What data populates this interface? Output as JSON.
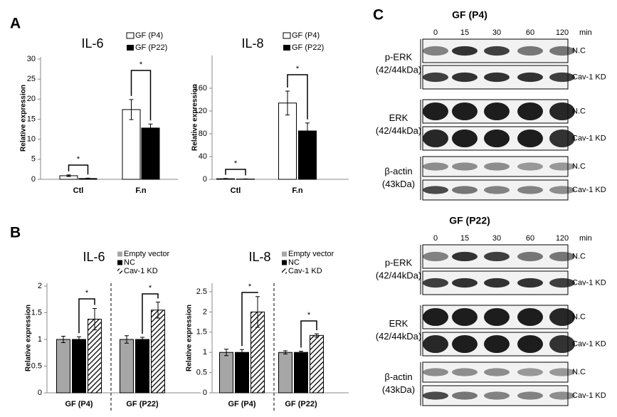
{
  "panel_labels": [
    "A",
    "B",
    "C"
  ],
  "chart_data": [
    {
      "type": "bar",
      "title": "IL-6",
      "ylabel": "Relative expression",
      "categories": [
        "Ctl",
        "F.n"
      ],
      "series": [
        {
          "name": "GF (P4)",
          "color": "#ffffff",
          "values": [
            0.9,
            17.4
          ],
          "errors": [
            0.2,
            2.5
          ]
        },
        {
          "name": "GF (P22)",
          "color": "#000000",
          "values": [
            0.2,
            12.8
          ],
          "errors": [
            0.1,
            1.0
          ]
        }
      ],
      "ylim": [
        0,
        30
      ],
      "yticks": [
        0,
        5,
        10,
        15,
        20,
        25,
        30
      ],
      "annotations": [
        "*",
        "*"
      ]
    },
    {
      "type": "bar",
      "title": "IL-8",
      "ylabel": "Relative expression",
      "categories": [
        "Ctl",
        "F.n"
      ],
      "series": [
        {
          "name": "GF (P4)",
          "color": "#ffffff",
          "values": [
            1,
            134
          ],
          "errors": [
            0.5,
            21
          ]
        },
        {
          "name": "GF (P22)",
          "color": "#000000",
          "values": [
            0.5,
            85
          ],
          "errors": [
            0.3,
            14
          ]
        }
      ],
      "ylim": [
        0,
        180
      ],
      "yticks": [
        0,
        40,
        80,
        120,
        160
      ],
      "annotations": [
        "*",
        "*"
      ]
    },
    {
      "type": "bar",
      "title": "IL-6",
      "ylabel": "Relative expression",
      "categories": [
        "GF (P4)",
        "GF (P22)"
      ],
      "series": [
        {
          "name": "Empty vector",
          "color": "#a6a6a6",
          "values": [
            1.0,
            1.0
          ],
          "errors": [
            0.06,
            0.07
          ]
        },
        {
          "name": "NC",
          "color": "#000000",
          "values": [
            1.0,
            1.0
          ],
          "errors": [
            0.05,
            0.04
          ]
        },
        {
          "name": "Cav-1 KD",
          "color": "#000000",
          "hatch": true,
          "values": [
            1.38,
            1.55
          ],
          "errors": [
            0.2,
            0.15
          ]
        }
      ],
      "ylim": [
        0,
        2
      ],
      "yticks": [
        0,
        0.5,
        1,
        1.5,
        2
      ],
      "annotations": [
        "*",
        "*"
      ]
    },
    {
      "type": "bar",
      "title": "IL-8",
      "ylabel": "Relative expression",
      "categories": [
        "GF (P4)",
        "GF (P22)"
      ],
      "series": [
        {
          "name": "Empty vector",
          "color": "#a6a6a6",
          "values": [
            1.0,
            1.0
          ],
          "errors": [
            0.08,
            0.04
          ]
        },
        {
          "name": "NC",
          "color": "#000000",
          "values": [
            1.0,
            1.0
          ],
          "errors": [
            0.07,
            0.03
          ]
        },
        {
          "name": "Cav-1 KD",
          "color": "#000000",
          "hatch": true,
          "values": [
            2.0,
            1.42
          ],
          "errors": [
            0.38,
            0.04
          ]
        }
      ],
      "ylim": [
        0,
        2.5
      ],
      "yticks": [
        0,
        0.5,
        1,
        1.5,
        2,
        2.5
      ],
      "annotations": [
        "*",
        "*"
      ]
    }
  ],
  "blots": [
    {
      "title": "GF (P4)",
      "lanes": [
        "0",
        "15",
        "30",
        "60",
        "120"
      ],
      "unit": "min",
      "rows": [
        {
          "label": [
            "p-ERK",
            "(42/44kDa)"
          ],
          "conditions": [
            "N.C",
            "Cav-1  KD"
          ]
        },
        {
          "label": [
            "ERK",
            "(42/44kDa)"
          ],
          "conditions": [
            "N.C",
            "Cav-1  KD"
          ]
        },
        {
          "label": [
            "β-actin",
            "(43kDa)"
          ],
          "conditions": [
            "N.C",
            "Cav-1  KD"
          ]
        }
      ]
    },
    {
      "title": "GF (P22)",
      "lanes": [
        "0",
        "15",
        "30",
        "60",
        "120"
      ],
      "unit": "min",
      "rows": [
        {
          "label": [
            "p-ERK",
            "(42/44kDa)"
          ],
          "conditions": [
            "N.C",
            "Cav-1  KD"
          ]
        },
        {
          "label": [
            "ERK",
            "(42/44kDa)"
          ],
          "conditions": [
            "N.C",
            "Cav-1  KD"
          ]
        },
        {
          "label": [
            "β-actin",
            "(43kDa)"
          ],
          "conditions": [
            "N.C",
            "Cav-1  KD"
          ]
        }
      ]
    }
  ]
}
